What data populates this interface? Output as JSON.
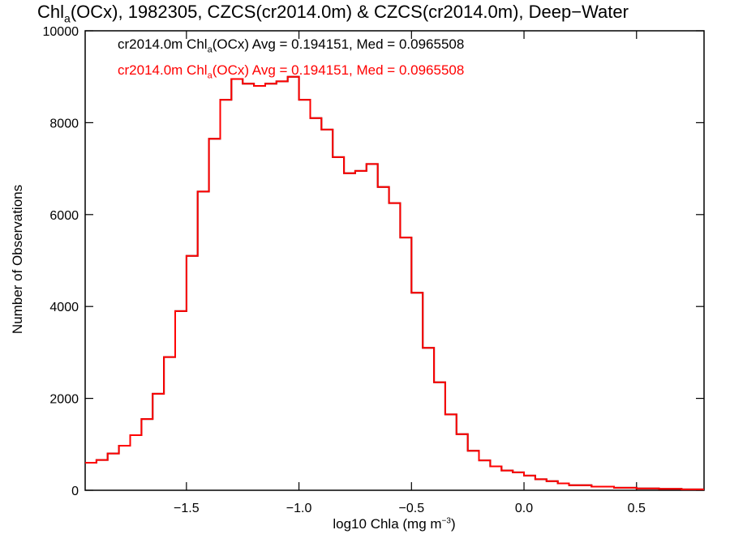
{
  "chart_data": {
    "type": "line",
    "subtype": "histogram-step",
    "title": {
      "pre": "Chl",
      "sub": "a",
      "post": "(OCx), 1982305, CZCS(cr2014.0m) & CZCS(cr2014.0m), Deep−Water"
    },
    "xlabel": {
      "base": "log10 Chla (mg m",
      "sup": "−3",
      "end": ")"
    },
    "ylabel": "Number of Observations",
    "xlim": [
      -1.95,
      0.8
    ],
    "ylim": [
      0,
      10000
    ],
    "x_ticks": [
      -1.5,
      -1.0,
      -0.5,
      0.0,
      0.5
    ],
    "x_tick_labels": [
      "−1.5",
      "−1.0",
      "−0.5",
      "0.0",
      "0.5"
    ],
    "y_ticks": [
      0,
      2000,
      4000,
      6000,
      8000,
      10000
    ],
    "y_tick_labels": [
      "0",
      "2000",
      "4000",
      "6000",
      "8000",
      "10000"
    ],
    "grid": false,
    "legend_position": "top-left",
    "legend": [
      {
        "pre": "cr2014.0m Chl",
        "sub": "a",
        "post": "(OCx) Avg = 0.194151, Med = 0.0965508",
        "color": "#000000"
      },
      {
        "pre": "cr2014.0m Chl",
        "sub": "a",
        "post": "(OCx) Avg = 0.194151, Med = 0.0965508",
        "color": "#ff0000"
      }
    ],
    "series": [
      {
        "color": "#000000",
        "x": [
          -1.95,
          -1.9,
          -1.85,
          -1.8,
          -1.75,
          -1.7,
          -1.65,
          -1.6,
          -1.55,
          -1.5,
          -1.45,
          -1.4,
          -1.35,
          -1.3,
          -1.25,
          -1.2,
          -1.15,
          -1.1,
          -1.05,
          -1.0,
          -0.95,
          -0.9,
          -0.85,
          -0.8,
          -0.75,
          -0.7,
          -0.65,
          -0.6,
          -0.55,
          -0.5,
          -0.45,
          -0.4,
          -0.35,
          -0.3,
          -0.25,
          -0.2,
          -0.15,
          -0.1,
          -0.05,
          0.0,
          0.05,
          0.1,
          0.15,
          0.2,
          0.3,
          0.4,
          0.5,
          0.6,
          0.7,
          0.8
        ],
        "y": [
          600,
          660,
          800,
          970,
          1200,
          1550,
          2100,
          2900,
          3900,
          5100,
          6500,
          7650,
          8500,
          8950,
          8850,
          8800,
          8850,
          8900,
          9000,
          8500,
          8100,
          7850,
          7250,
          6900,
          6950,
          7100,
          6600,
          6250,
          5500,
          4300,
          3100,
          2350,
          1650,
          1220,
          860,
          650,
          520,
          430,
          390,
          320,
          240,
          200,
          150,
          110,
          80,
          55,
          40,
          30,
          20,
          20
        ]
      },
      {
        "color": "#ff0000",
        "x": [
          -1.95,
          -1.9,
          -1.85,
          -1.8,
          -1.75,
          -1.7,
          -1.65,
          -1.6,
          -1.55,
          -1.5,
          -1.45,
          -1.4,
          -1.35,
          -1.3,
          -1.25,
          -1.2,
          -1.15,
          -1.1,
          -1.05,
          -1.0,
          -0.95,
          -0.9,
          -0.85,
          -0.8,
          -0.75,
          -0.7,
          -0.65,
          -0.6,
          -0.55,
          -0.5,
          -0.45,
          -0.4,
          -0.35,
          -0.3,
          -0.25,
          -0.2,
          -0.15,
          -0.1,
          -0.05,
          0.0,
          0.05,
          0.1,
          0.15,
          0.2,
          0.3,
          0.4,
          0.5,
          0.6,
          0.7,
          0.8
        ],
        "y": [
          600,
          660,
          800,
          970,
          1200,
          1550,
          2100,
          2900,
          3900,
          5100,
          6500,
          7650,
          8500,
          8950,
          8850,
          8800,
          8850,
          8900,
          9000,
          8500,
          8100,
          7850,
          7250,
          6900,
          6950,
          7100,
          6600,
          6250,
          5500,
          4300,
          3100,
          2350,
          1650,
          1220,
          860,
          650,
          520,
          430,
          390,
          320,
          240,
          200,
          150,
          110,
          80,
          55,
          40,
          30,
          20,
          20
        ]
      }
    ]
  }
}
